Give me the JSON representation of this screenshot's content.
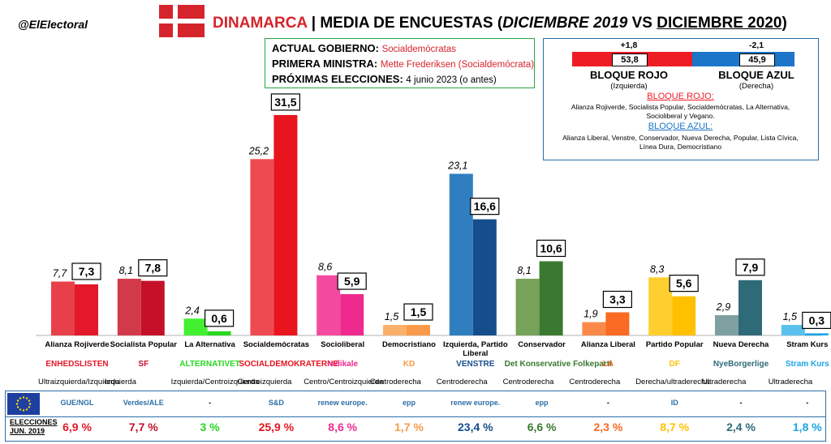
{
  "header": {
    "handle": "@ElElectoral",
    "country": "DINAMARCA",
    "separator": " | MEDIA DE ENCUESTAS (",
    "period_a": "DICIEMBRE 2019",
    "vs": " VS ",
    "period_b": "DICIEMBRE 2020",
    "close": ")"
  },
  "government": {
    "l1_label": "ACTUAL GOBIERNO:",
    "l1_value": "Socialdemócratas",
    "l2_label": "PRIMERA MINISTRA:",
    "l2_value": "Mette Frederiksen (Socialdemócrata)",
    "l3_label": "PRÓXIMAS ELECCIONES:",
    "l3_value": "4 junio 2023 (o antes)"
  },
  "blocs": {
    "red_change": "+1,8",
    "blue_change": "-2,1",
    "red_value": 53.8,
    "blue_value": 45.9,
    "red_value_label": "53,8",
    "blue_value_label": "45,9",
    "red_name": "BLOQUE ROJO",
    "blue_name": "BLOQUE AZUL",
    "red_side": "(Izquierda)",
    "blue_side": "(Derecha)",
    "red_heading": "BLOQUE ROJO:",
    "red_members": "Alianza Rojiverde, Socialista Popular, Socialdemócratas, La Alternativa,",
    "red_members_2": "Socioliberal y Vegano.",
    "blue_heading": "BLOQUE AZUL:",
    "blue_members": "Alianza Liberal, Venstre, Conservador, Nueva Derecha, Popular, Lista Cívica,",
    "blue_members_2": "Línea Dura, Democristiano",
    "red_color": "#ee1c25",
    "blue_color": "#1c75c8"
  },
  "chart_data": {
    "type": "bar",
    "categories": [
      "Alianza Rojiverde",
      "Socialista Popular",
      "La Alternativa",
      "Socialdemócratas",
      "Socioliberal",
      "Democristiano",
      "Izquierda, Partido Liberal",
      "Conservador",
      "Alianza Liberal",
      "Partido Popular",
      "Nueva Derecha",
      "Stram Kurs"
    ],
    "series": [
      {
        "name": "DICIEMBRE 2019",
        "values": [
          7.7,
          8.1,
          2.4,
          25.2,
          8.6,
          1.5,
          23.1,
          8.1,
          1.9,
          8.3,
          2.9,
          1.5
        ],
        "labels": [
          "7,7",
          "8,1",
          "2,4",
          "25,2",
          "8,6",
          "1,5",
          "23,1",
          "8,1",
          "1,9",
          "8,3",
          "2,9",
          "1,5"
        ]
      },
      {
        "name": "DICIEMBRE 2020",
        "values": [
          7.3,
          7.8,
          0.6,
          31.5,
          5.9,
          1.5,
          16.6,
          10.6,
          3.3,
          5.6,
          7.9,
          0.3
        ],
        "labels": [
          "7,3",
          "7,8",
          "0,6",
          "31,5",
          "5,9",
          "1,5",
          "16,6",
          "10,6",
          "3,3",
          "5,6",
          "7,9",
          "0,3"
        ]
      }
    ],
    "colors_2019": [
      "#e8404a",
      "#d23a4a",
      "#42f030",
      "#ee4a52",
      "#f34aa0",
      "#fbb06a",
      "#2f7fc0",
      "#77a25a",
      "#fb8a4a",
      "#ffcf30",
      "#7fa0a0",
      "#5cc0ee"
    ],
    "colors_2020": [
      "#e3182a",
      "#c5102a",
      "#28d820",
      "#e8141e",
      "#ee2a8e",
      "#fa9a48",
      "#164d8c",
      "#3a7a30",
      "#fb6a22",
      "#ffc000",
      "#2f6a78",
      "#1aa6e6"
    ],
    "ideologies": [
      "Ultraizquierda/Izquierda",
      "Izquierda",
      "Izquierda/Centroizquierda",
      "Centroizquierda",
      "Centro/Centroizquierda",
      "Centroderecha",
      "Centroderecha",
      "Centroderecha",
      "Centroderecha",
      "Derecha/ultraderecha",
      "Ultraderecha",
      "Ultraderecha"
    ],
    "ylim": [
      0,
      33
    ],
    "xlabel": "",
    "ylabel": "",
    "legend": "none",
    "grid": false
  },
  "logos": [
    "ENHEDSLISTEN",
    "SF",
    "ALTERNATIVET",
    "SOCIALDEMOKRATERNE",
    "radikale",
    "KD",
    "VENSTRE",
    "Det Konservative Folkeparti",
    "LA",
    "DF",
    "NyeBorgerlige",
    "Stram Kurs"
  ],
  "eu_groups": [
    "GUE/NGL",
    "Verdes/ALE",
    "-",
    "S&D",
    "renew europe.",
    "epp",
    "renew europe.",
    "epp",
    "-",
    "ID",
    "-",
    "-"
  ],
  "elections": {
    "label_1": "ELECCIONES",
    "label_2": "JUN. 2019",
    "results": [
      "6,9 %",
      "7,7 %",
      "3 %",
      "25,9 %",
      "8,6 %",
      "1,7 %",
      "23,4 %",
      "6,6 %",
      "2,3 %",
      "8,7 %",
      "2,4 %",
      "1,8 %"
    ]
  }
}
